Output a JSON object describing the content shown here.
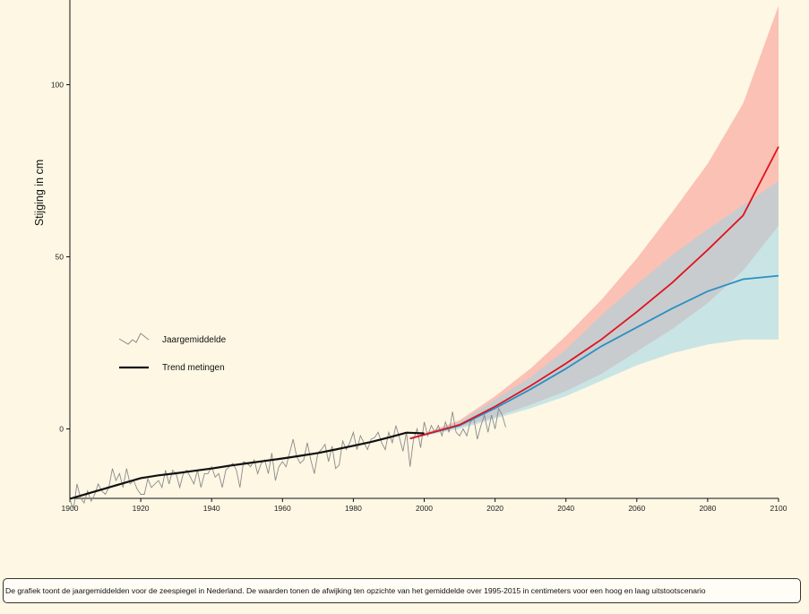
{
  "caption": "De grafiek toont de jaargemiddelden voor de zeespiegel in Nederland. De waarden tonen de afwijking ten opzichte van het gemiddelde over 1995-2015 in centimeters voor een hoog en laag uitstootscenario",
  "chart_data": {
    "type": "line",
    "title": "",
    "xlabel": "",
    "ylabel": "Stijging in cm",
    "xlim": [
      1900,
      2100
    ],
    "ylim": [
      -20,
      125
    ],
    "x_ticks": [
      1900,
      1920,
      1940,
      1960,
      1980,
      2000,
      2020,
      2040,
      2060,
      2080,
      2100
    ],
    "y_ticks": [
      0,
      50,
      100
    ],
    "grid": false,
    "legend": {
      "placement": "left-middle",
      "entries": [
        {
          "label": "Jaargemiddelde",
          "style": "thin-gray-zigzag"
        },
        {
          "label": "Trend metingen",
          "style": "thick-black"
        }
      ]
    },
    "colors": {
      "annual": "#8a8a8a",
      "trend": "#111111",
      "high_line": "#e0121f",
      "high_band": "#f7958d",
      "low_line": "#2b8fc4",
      "low_band": "#9fd6e3"
    },
    "series": [
      {
        "name": "Jaargemiddelde",
        "x": [
          1900,
          1901,
          1902,
          1903,
          1904,
          1905,
          1906,
          1907,
          1908,
          1909,
          1910,
          1911,
          1912,
          1913,
          1914,
          1915,
          1916,
          1917,
          1918,
          1919,
          1920,
          1921,
          1922,
          1923,
          1924,
          1925,
          1926,
          1927,
          1928,
          1929,
          1930,
          1931,
          1932,
          1933,
          1934,
          1935,
          1936,
          1937,
          1938,
          1939,
          1940,
          1941,
          1942,
          1943,
          1944,
          1945,
          1946,
          1947,
          1948,
          1949,
          1950,
          1951,
          1952,
          1953,
          1954,
          1955,
          1956,
          1957,
          1958,
          1959,
          1960,
          1961,
          1962,
          1963,
          1964,
          1965,
          1966,
          1967,
          1968,
          1969,
          1970,
          1971,
          1972,
          1973,
          1974,
          1975,
          1976,
          1977,
          1978,
          1979,
          1980,
          1981,
          1982,
          1983,
          1984,
          1985,
          1986,
          1987,
          1988,
          1989,
          1990,
          1991,
          1992,
          1993,
          1994,
          1995,
          1996,
          1997,
          1998,
          1999,
          2000,
          2001,
          2002,
          2003,
          2004,
          2005,
          2006,
          2007,
          2008,
          2009,
          2010,
          2011,
          2012,
          2013,
          2014,
          2015,
          2016,
          2017,
          2018,
          2019,
          2020,
          2021,
          2022,
          2023
        ],
        "values": [
          -20.5,
          -23.5,
          -16,
          -20,
          -21.5,
          -18,
          -21,
          -19,
          -16,
          -18,
          -19,
          -17,
          -11.5,
          -15,
          -13,
          -17,
          -11.5,
          -16,
          -15,
          -17.5,
          -19,
          -19,
          -14.5,
          -17,
          -16,
          -15,
          -17,
          -12,
          -16,
          -12,
          -13,
          -17,
          -13,
          -12,
          -14,
          -16,
          -12,
          -17,
          -13,
          -13,
          -11,
          -14,
          -13,
          -17,
          -12,
          -11,
          -10,
          -12,
          -17,
          -9.5,
          -10,
          -11,
          -9,
          -13,
          -10,
          -9,
          -13,
          -7,
          -15,
          -11,
          -9.5,
          -11,
          -7,
          -3,
          -8,
          -10,
          -9,
          -4,
          -9,
          -13,
          -7,
          -6,
          -4.5,
          -9.5,
          -5,
          -11.5,
          -10.5,
          -3.5,
          -6,
          -4,
          -1,
          -6,
          -2,
          -4,
          -6,
          -3,
          -2.5,
          -1,
          -4,
          -6,
          -1,
          -4,
          1,
          -2.5,
          -6.5,
          -1,
          -11,
          -3,
          0,
          -5.5,
          2,
          -2,
          1,
          -1,
          1,
          -2,
          2,
          -1,
          5,
          -1,
          -2,
          0,
          -2,
          2,
          3,
          -3,
          1,
          4,
          -1,
          4,
          0,
          6,
          4,
          0.5
        ]
      },
      {
        "name": "Trend metingen",
        "x": [
          1900,
          1905,
          1910,
          1915,
          1920,
          1925,
          1930,
          1935,
          1940,
          1945,
          1950,
          1955,
          1960,
          1965,
          1970,
          1975,
          1980,
          1985,
          1990,
          1995,
          2000
        ],
        "values": [
          -20.3,
          -18.8,
          -17.3,
          -15.8,
          -14.3,
          -13.5,
          -12.9,
          -12.2,
          -11.5,
          -10.7,
          -10,
          -9.3,
          -8.6,
          -7.8,
          -7,
          -6,
          -4.9,
          -3.8,
          -2.5,
          -1.1,
          -1.3
        ]
      },
      {
        "name": "",
        "x": [
          1996,
          2010,
          2020,
          2030,
          2040,
          2050,
          2060,
          2070,
          2080,
          2090,
          2100
        ],
        "values": [
          -2.8,
          1.2,
          6.5,
          12.5,
          19,
          26,
          34,
          42.5,
          52,
          62,
          82
        ],
        "band_low": [
          -2.8,
          0.5,
          3.5,
          7,
          11,
          16,
          22.5,
          29,
          36.5,
          46,
          59
        ],
        "band_high": [
          -2.8,
          2.5,
          9.5,
          17.5,
          27,
          37.5,
          49.5,
          63,
          77,
          94.5,
          123
        ]
      },
      {
        "name": "",
        "x": [
          1996,
          2010,
          2020,
          2030,
          2040,
          2050,
          2060,
          2070,
          2080,
          2090,
          2100
        ],
        "values": [
          -2.8,
          1,
          6,
          11.5,
          17.5,
          24,
          29.5,
          35,
          40,
          43.5,
          44.5
        ],
        "band_low": [
          -2.8,
          0,
          3,
          6,
          9.5,
          14,
          18.5,
          22,
          24.5,
          26,
          26
        ],
        "band_high": [
          -2.8,
          2,
          8.5,
          15,
          23,
          33,
          42,
          50.5,
          58,
          65,
          72
        ]
      }
    ]
  }
}
